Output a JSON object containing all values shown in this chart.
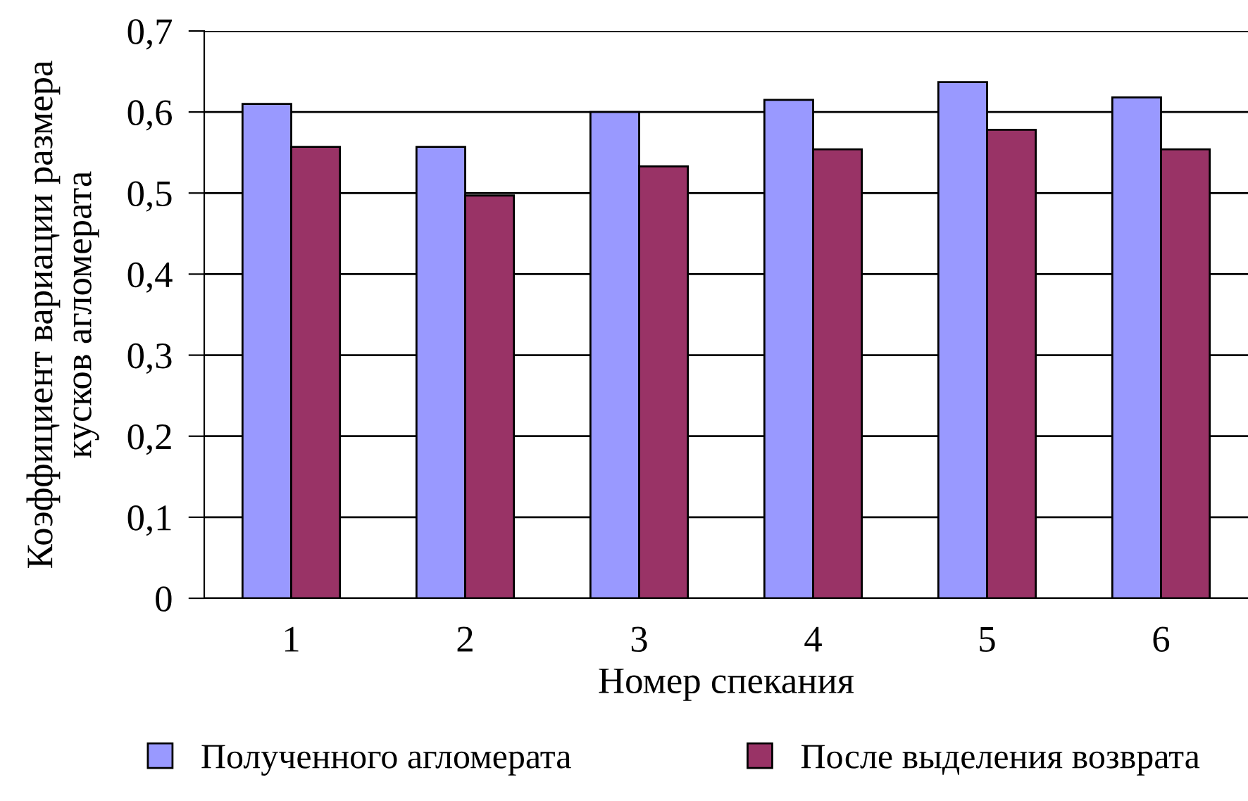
{
  "chart_data": {
    "type": "bar",
    "xlabel": "Номер спекания",
    "ylabel": "Коэффициент вариации размера\nкусков агломерата",
    "categories": [
      "1",
      "2",
      "3",
      "4",
      "5",
      "6"
    ],
    "series": [
      {
        "name": "Полученного агломерата",
        "color": "#9999ff",
        "values": [
          0.61,
          0.557,
          0.6,
          0.615,
          0.637,
          0.618
        ]
      },
      {
        "name": "После выделения возврата",
        "color": "#993366",
        "values": [
          0.557,
          0.497,
          0.533,
          0.554,
          0.578,
          0.554
        ]
      }
    ],
    "ylim": [
      0,
      0.7
    ],
    "yticks": [
      {
        "value": 0,
        "label": "0"
      },
      {
        "value": 0.1,
        "label": "0,1"
      },
      {
        "value": 0.2,
        "label": "0,2"
      },
      {
        "value": 0.3,
        "label": "0,3"
      },
      {
        "value": 0.4,
        "label": "0,4"
      },
      {
        "value": 0.5,
        "label": "0,5"
      },
      {
        "value": 0.6,
        "label": "0,6"
      },
      {
        "value": 0.7,
        "label": "0,7"
      }
    ],
    "grid": "y",
    "legend": "bottom"
  }
}
